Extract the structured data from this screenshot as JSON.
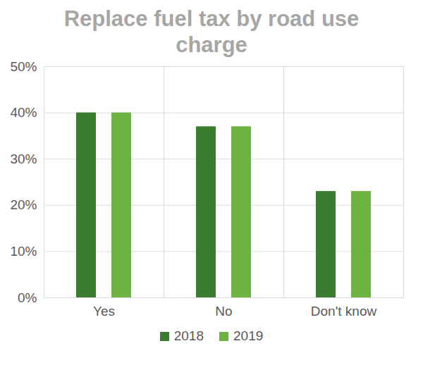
{
  "chart_data": {
    "type": "bar",
    "title": "Replace fuel tax by road use charge",
    "categories": [
      "Yes",
      "No",
      "Don't know"
    ],
    "series": [
      {
        "name": "2018",
        "color": "#3a7d2e",
        "values": [
          40,
          37,
          23
        ]
      },
      {
        "name": "2019",
        "color": "#6cb342",
        "values": [
          40,
          37,
          23
        ]
      }
    ],
    "ylim": [
      0,
      50
    ],
    "yticks": [
      {
        "value": 0,
        "label": "0%"
      },
      {
        "value": 10,
        "label": "10%"
      },
      {
        "value": 20,
        "label": "20%"
      },
      {
        "value": 30,
        "label": "30%"
      },
      {
        "value": 40,
        "label": "40%"
      },
      {
        "value": 50,
        "label": "50%"
      }
    ],
    "grid": true,
    "legend": "bottom"
  }
}
